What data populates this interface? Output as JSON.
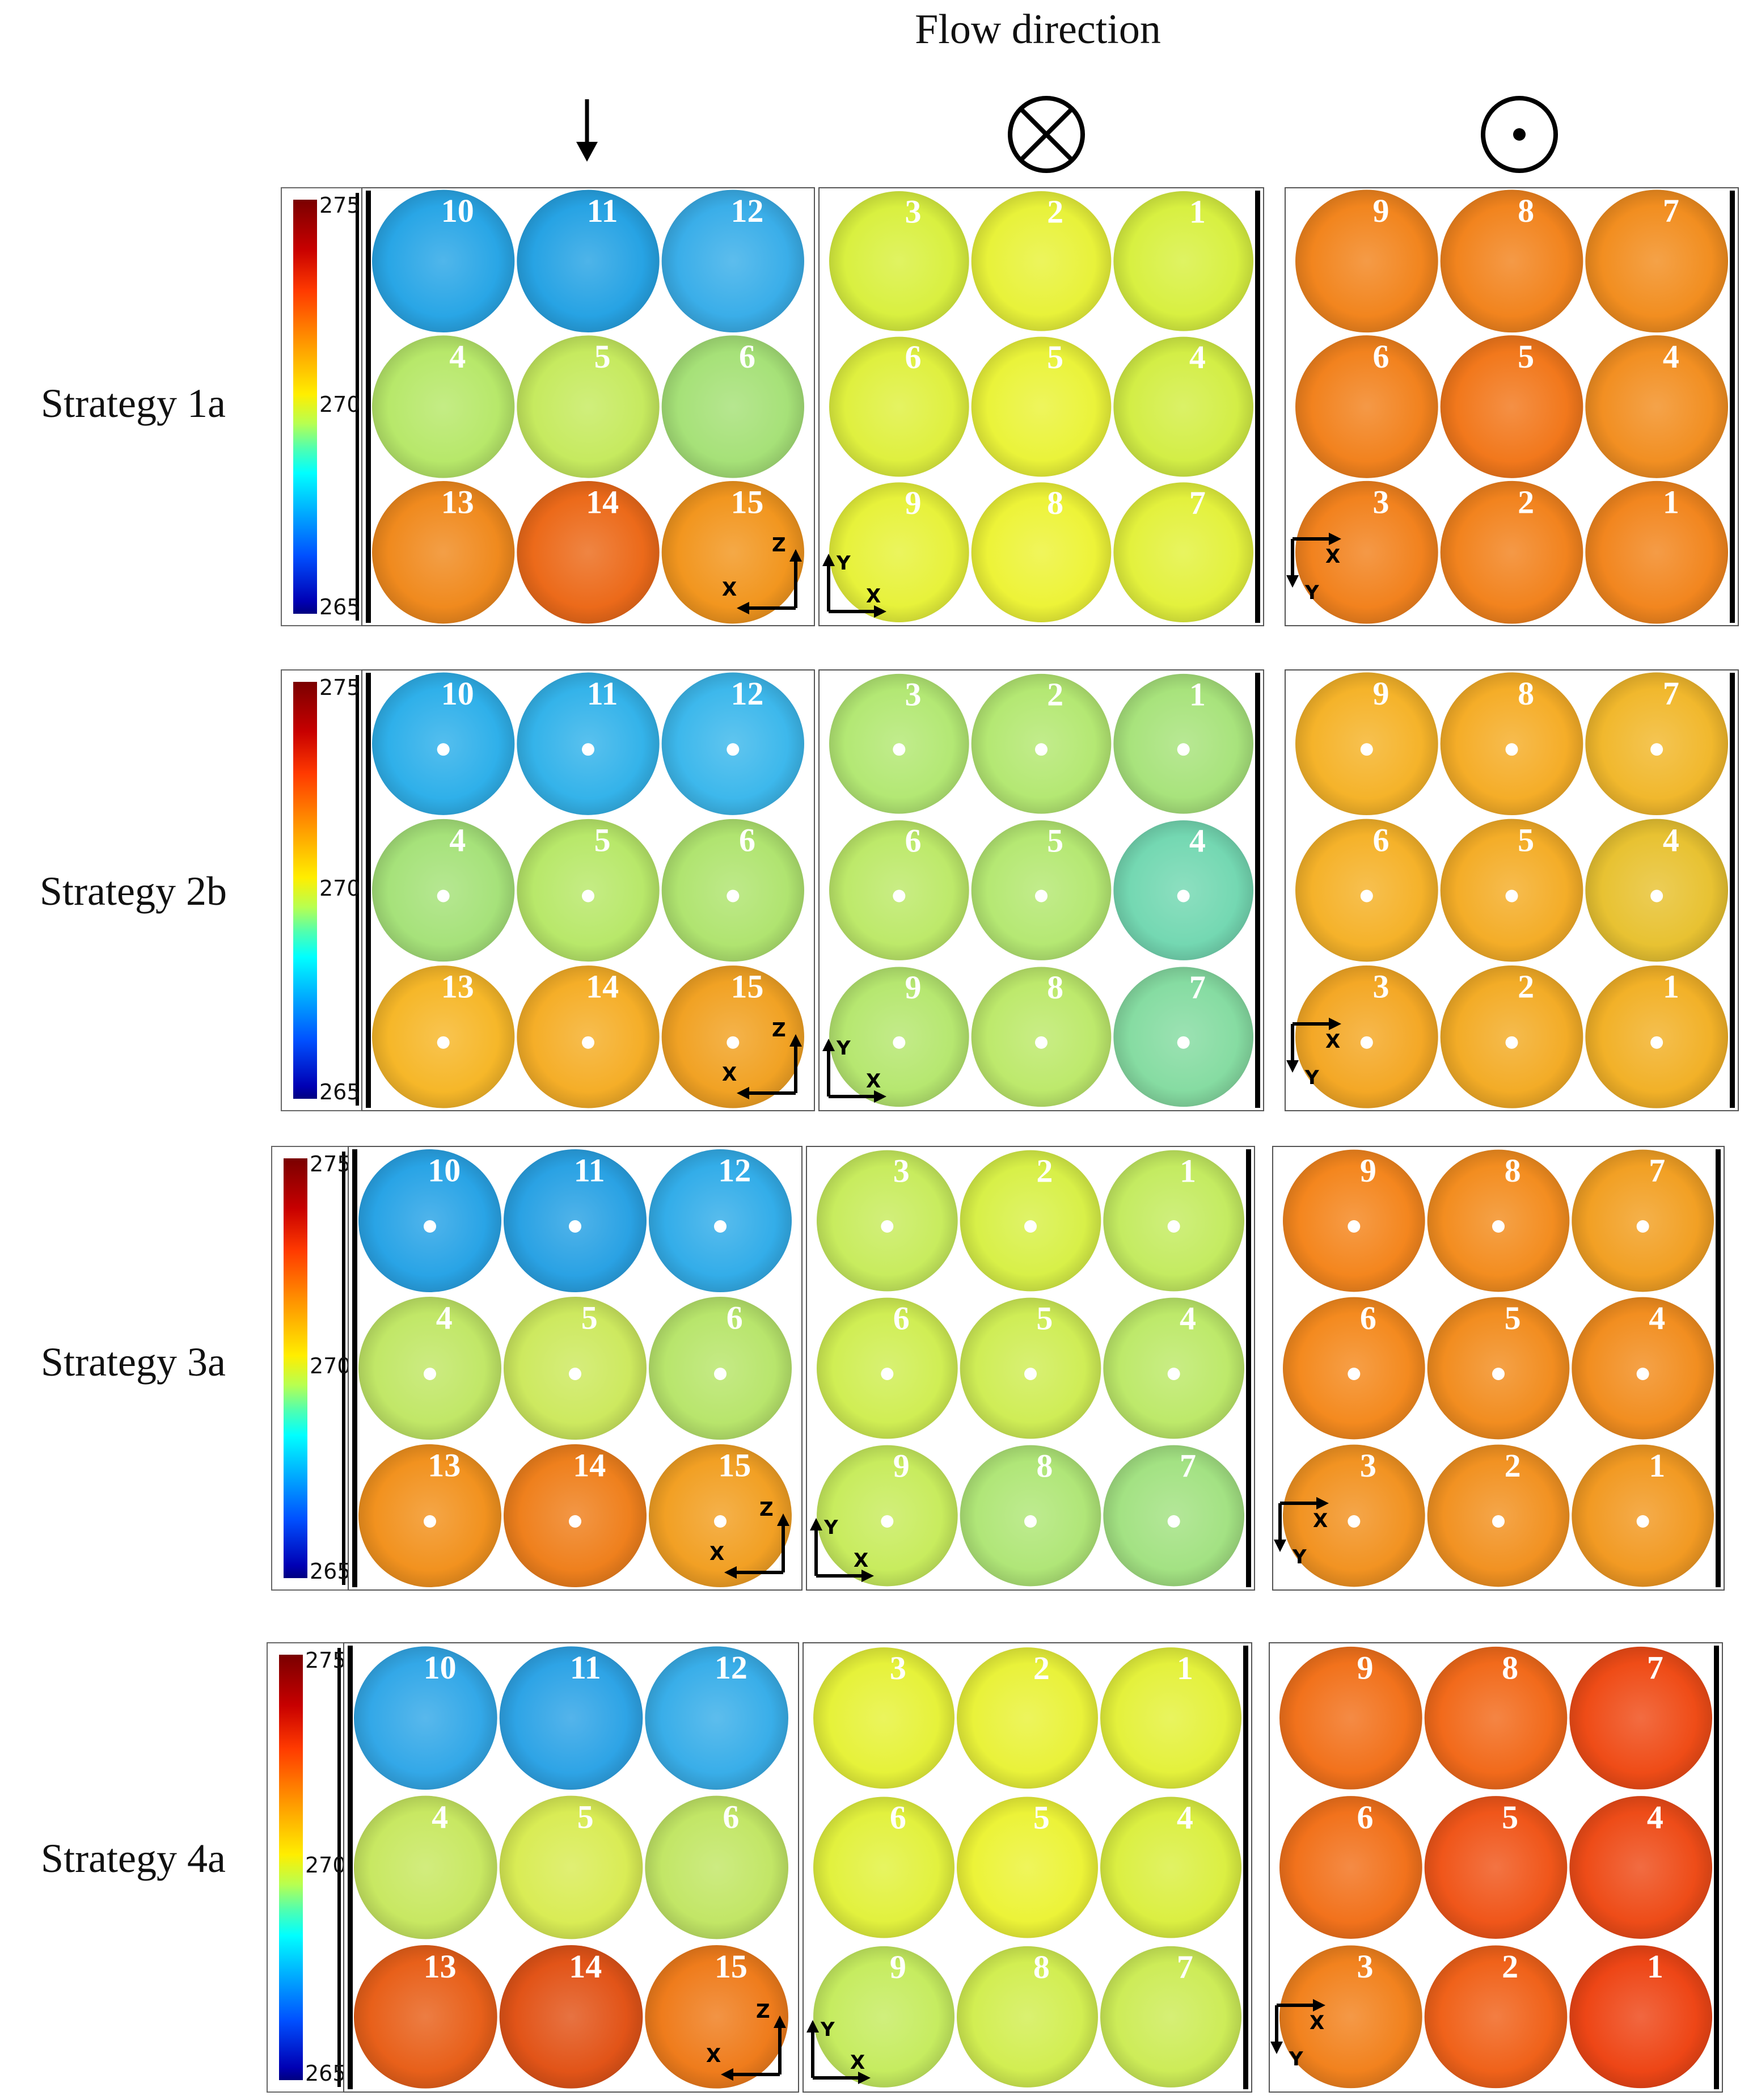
{
  "flow_title": "Flow direction",
  "direction_symbols": [
    "down-arrow-icon",
    "cross-circle-icon",
    "dot-circle-icon"
  ],
  "rows": [
    {
      "label": "Strategy 1a",
      "scale": {
        "max": "275",
        "mid": "270",
        "min": "265"
      },
      "dots": false,
      "panels": [
        {
          "view": "downstream",
          "numbers": [
            "10",
            "11",
            "12",
            "4",
            "5",
            "6",
            "13",
            "14",
            "15"
          ],
          "axes": {
            "vertical": "Z",
            "horizontal": "X"
          },
          "colors": [
            [
              "#29a6e6",
              "#27a3e4",
              "#3aaee9"
            ],
            [
              "#b7e86a",
              "#c6ea5f",
              "#a6e178"
            ],
            [
              "#f08a1e",
              "#ec6a1a",
              "#f2961f"
            ]
          ]
        },
        {
          "view": "side",
          "numbers": [
            "3",
            "2",
            "1",
            "6",
            "5",
            "4",
            "9",
            "8",
            "7"
          ],
          "axes": {
            "vertical": "Y",
            "horizontal": "X"
          },
          "colors": [
            [
              "#d9f040",
              "#e8f23a",
              "#d8f041"
            ],
            [
              "#dff03f",
              "#eaf33a",
              "#d3ee46"
            ],
            [
              "#e7f23b",
              "#edf338",
              "#e3f13d"
            ]
          ]
        },
        {
          "view": "upstream",
          "numbers": [
            "9",
            "8",
            "7",
            "6",
            "5",
            "4",
            "3",
            "2",
            "1"
          ],
          "axes": {
            "vertical": "Y",
            "horizontal": "X"
          },
          "colors": [
            [
              "#f2851e",
              "#f2841e",
              "#f28e20"
            ],
            [
              "#f2821e",
              "#f2781c",
              "#f28f22"
            ],
            [
              "#f2821e",
              "#f2831e",
              "#f2861f"
            ]
          ]
        }
      ]
    },
    {
      "label": "Strategy 2b",
      "scale": {
        "max": "275",
        "mid": "270",
        "min": "265"
      },
      "dots": true,
      "panels": [
        {
          "view": "downstream",
          "numbers": [
            "10",
            "11",
            "12",
            "4",
            "5",
            "6",
            "13",
            "14",
            "15"
          ],
          "axes": {
            "vertical": "Z",
            "horizontal": "X"
          },
          "colors": [
            [
              "#2fb0ea",
              "#34b3ea",
              "#3db8ec"
            ],
            [
              "#a6e27a",
              "#b8e86a",
              "#b0e470"
            ],
            [
              "#f6b729",
              "#f5ae28",
              "#f1a224"
            ]
          ]
        },
        {
          "view": "side",
          "numbers": [
            "3",
            "2",
            "1",
            "6",
            "5",
            "4",
            "9",
            "8",
            "7"
          ],
          "axes": {
            "vertical": "Y",
            "horizontal": "X"
          },
          "colors": [
            [
              "#b3e874",
              "#b4e873",
              "#a8e37c"
            ],
            [
              "#bde96a",
              "#b5e873",
              "#74d8b2"
            ],
            [
              "#b6e770",
              "#bde96c",
              "#86dca2"
            ]
          ]
        },
        {
          "view": "upstream",
          "numbers": [
            "9",
            "8",
            "7",
            "6",
            "5",
            "4",
            "3",
            "2",
            "1"
          ],
          "axes": {
            "vertical": "Y",
            "horizontal": "X"
          },
          "colors": [
            [
              "#f5b32a",
              "#f5ad28",
              "#f1b82d"
            ],
            [
              "#f5b22a",
              "#f4ad28",
              "#e8c232"
            ],
            [
              "#f4a826",
              "#f3ac27",
              "#f2b128"
            ]
          ]
        }
      ]
    },
    {
      "label": "Strategy 3a",
      "scale": {
        "max": "275",
        "mid": "270",
        "min": "265"
      },
      "dots": true,
      "panels": [
        {
          "view": "downstream",
          "numbers": [
            "10",
            "11",
            "12",
            "4",
            "5",
            "6",
            "13",
            "14",
            "15"
          ],
          "axes": {
            "vertical": "Z",
            "horizontal": "X"
          },
          "colors": [
            [
              "#29a4e6",
              "#2aa2e4",
              "#33ade9"
            ],
            [
              "#c1e767",
              "#cde95f",
              "#b8e56c"
            ],
            [
              "#f2921f",
              "#ef801d",
              "#f2a024"
            ]
          ]
        },
        {
          "view": "side",
          "numbers": [
            "3",
            "2",
            "1",
            "6",
            "5",
            "4",
            "9",
            "8",
            "7"
          ],
          "axes": {
            "vertical": "Y",
            "horizontal": "X"
          },
          "colors": [
            [
              "#c8ec5e",
              "#d8f048",
              "#c4eb61"
            ],
            [
              "#d0ee54",
              "#cfed56",
              "#bde96a"
            ],
            [
              "#c8ec5e",
              "#b0e678",
              "#a3e283"
            ]
          ]
        },
        {
          "view": "upstream",
          "numbers": [
            "9",
            "8",
            "7",
            "6",
            "5",
            "4",
            "3",
            "2",
            "1"
          ],
          "axes": {
            "vertical": "Y",
            "horizontal": "X"
          },
          "colors": [
            [
              "#f4861e",
              "#f38d20",
              "#f2a024"
            ],
            [
              "#f48a1f",
              "#f28d20",
              "#f28e20"
            ],
            [
              "#f29322",
              "#f29222",
              "#f29a23"
            ]
          ]
        }
      ]
    },
    {
      "label": "Strategy 4a",
      "scale": {
        "max": "275",
        "mid": "270",
        "min": "265"
      },
      "dots": false,
      "panels": [
        {
          "view": "downstream",
          "numbers": [
            "10",
            "11",
            "12",
            "4",
            "5",
            "6",
            "13",
            "14",
            "15"
          ],
          "axes": {
            "vertical": "Z",
            "horizontal": "X"
          },
          "colors": [
            [
              "#33a8e8",
              "#2ea4e6",
              "#39aee9"
            ],
            [
              "#c8e862",
              "#d9ec55",
              "#c2e666"
            ],
            [
              "#e8601a",
              "#e25418",
              "#ef7c1c"
            ]
          ]
        },
        {
          "view": "side",
          "numbers": [
            "3",
            "2",
            "1",
            "6",
            "5",
            "4",
            "9",
            "8",
            "7"
          ],
          "axes": {
            "vertical": "Y",
            "horizontal": "X"
          },
          "colors": [
            [
              "#e6f23a",
              "#e9f23a",
              "#e4f13c"
            ],
            [
              "#e2f13e",
              "#ecf338",
              "#dbef42"
            ],
            [
              "#c6ec60",
              "#d2ee52",
              "#cdec58"
            ]
          ]
        },
        {
          "view": "upstream",
          "numbers": [
            "9",
            "8",
            "7",
            "6",
            "5",
            "4",
            "3",
            "2",
            "1"
          ],
          "axes": {
            "vertical": "Y",
            "horizontal": "X"
          },
          "colors": [
            [
              "#f2721c",
              "#f26a1b",
              "#ef4c17"
            ],
            [
              "#f2721c",
              "#f0561a",
              "#ee4c18"
            ],
            [
              "#f2821e",
              "#f0621a",
              "#ee4616"
            ]
          ]
        }
      ]
    }
  ]
}
